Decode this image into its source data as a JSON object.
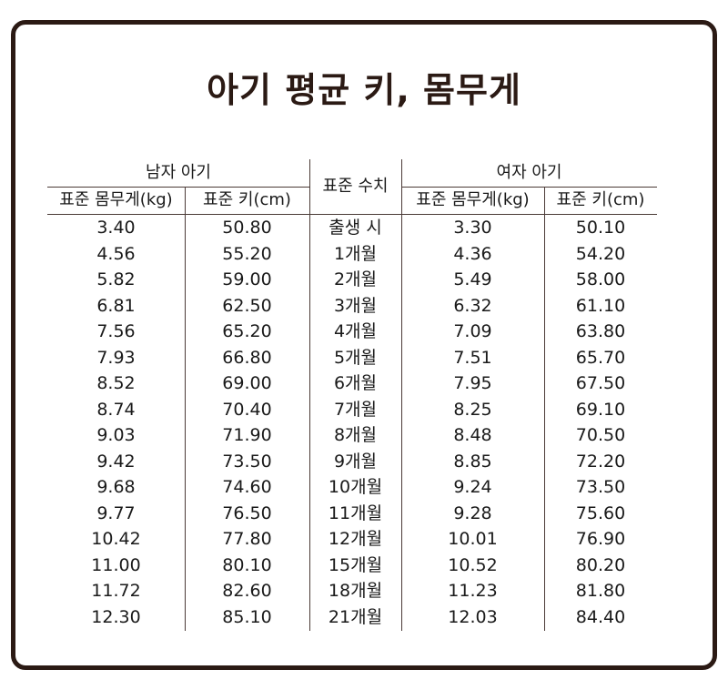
{
  "title": "아기 평균 키, 몸무게",
  "table": {
    "boy_group": "남자 아기",
    "girl_group": "여자 아기",
    "standard_label": "표준 수치",
    "boy_headers": [
      "표준 몸무게(kg)",
      "표준 키(cm)"
    ],
    "girl_headers": [
      "표준 몸무게(kg)",
      "표준 키(cm)"
    ],
    "rows": [
      {
        "boy_weight": "3.40",
        "boy_height": "50.80",
        "age": "출생 시",
        "girl_weight": "3.30",
        "girl_height": "50.10"
      },
      {
        "boy_weight": "4.56",
        "boy_height": "55.20",
        "age": "1개월",
        "girl_weight": "4.36",
        "girl_height": "54.20"
      },
      {
        "boy_weight": "5.82",
        "boy_height": "59.00",
        "age": "2개월",
        "girl_weight": "5.49",
        "girl_height": "58.00"
      },
      {
        "boy_weight": "6.81",
        "boy_height": "62.50",
        "age": "3개월",
        "girl_weight": "6.32",
        "girl_height": "61.10"
      },
      {
        "boy_weight": "7.56",
        "boy_height": "65.20",
        "age": "4개월",
        "girl_weight": "7.09",
        "girl_height": "63.80"
      },
      {
        "boy_weight": "7.93",
        "boy_height": "66.80",
        "age": "5개월",
        "girl_weight": "7.51",
        "girl_height": "65.70"
      },
      {
        "boy_weight": "8.52",
        "boy_height": "69.00",
        "age": "6개월",
        "girl_weight": "7.95",
        "girl_height": "67.50"
      },
      {
        "boy_weight": "8.74",
        "boy_height": "70.40",
        "age": "7개월",
        "girl_weight": "8.25",
        "girl_height": "69.10"
      },
      {
        "boy_weight": "9.03",
        "boy_height": "71.90",
        "age": "8개월",
        "girl_weight": "8.48",
        "girl_height": "70.50"
      },
      {
        "boy_weight": "9.42",
        "boy_height": "73.50",
        "age": "9개월",
        "girl_weight": "8.85",
        "girl_height": "72.20"
      },
      {
        "boy_weight": "9.68",
        "boy_height": "74.60",
        "age": "10개월",
        "girl_weight": "9.24",
        "girl_height": "73.50"
      },
      {
        "boy_weight": "9.77",
        "boy_height": "76.50",
        "age": "11개월",
        "girl_weight": "9.28",
        "girl_height": "75.60"
      },
      {
        "boy_weight": "10.42",
        "boy_height": "77.80",
        "age": "12개월",
        "girl_weight": "10.01",
        "girl_height": "76.90"
      },
      {
        "boy_weight": "11.00",
        "boy_height": "80.10",
        "age": "15개월",
        "girl_weight": "10.52",
        "girl_height": "80.20"
      },
      {
        "boy_weight": "11.72",
        "boy_height": "82.60",
        "age": "18개월",
        "girl_weight": "11.23",
        "girl_height": "81.80"
      },
      {
        "boy_weight": "12.30",
        "boy_height": "85.10",
        "age": "21개월",
        "girl_weight": "12.03",
        "girl_height": "84.40"
      }
    ]
  },
  "colors": {
    "frame": "#2b1a14",
    "title": "#2b1a14"
  }
}
